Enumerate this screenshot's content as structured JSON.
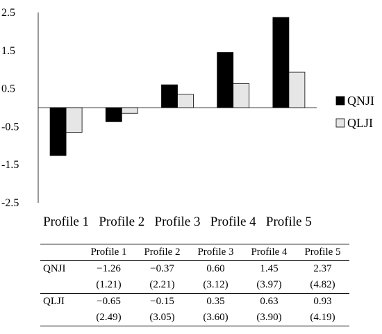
{
  "chart_data": {
    "type": "bar",
    "categories": [
      "Profile 1",
      "Profile 2",
      "Profile 3",
      "Profile 4",
      "Profile 5"
    ],
    "series": [
      {
        "name": "QNJI",
        "values": [
          -1.26,
          -0.37,
          0.6,
          1.45,
          2.37
        ],
        "color": "#000000"
      },
      {
        "name": "QLJI",
        "values": [
          -0.65,
          -0.15,
          0.35,
          0.63,
          0.93
        ],
        "color": "#e6e6e6"
      }
    ],
    "ylim": [
      -2.5,
      2.5
    ],
    "yticks": [
      "2.5",
      "1.5",
      "0.5",
      "-0.5",
      "-1.5",
      "-2.5"
    ],
    "ytick_values": [
      2.5,
      1.5,
      0.5,
      -0.5,
      -1.5,
      -2.5
    ],
    "legend_position": "right",
    "grid": false
  },
  "table": {
    "corner": "",
    "headers": [
      "Profile 1",
      "Profile 2",
      "Profile 3",
      "Profile 4",
      "Profile 5"
    ],
    "rows": [
      {
        "label": "QNJI",
        "values": [
          "−1.26",
          "−0.37",
          "0.60",
          "1.45",
          "2.37"
        ],
        "sub": [
          "(1.21)",
          "(2.21)",
          "(3.12)",
          "(3.97)",
          "(4.82)"
        ]
      },
      {
        "label": "QLJI",
        "values": [
          "−0.65",
          "−0.15",
          "0.35",
          "0.63",
          "0.93"
        ],
        "sub": [
          "(2.49)",
          "(3.05)",
          "(3.60)",
          "(3.90)",
          "(4.19)"
        ]
      }
    ]
  }
}
